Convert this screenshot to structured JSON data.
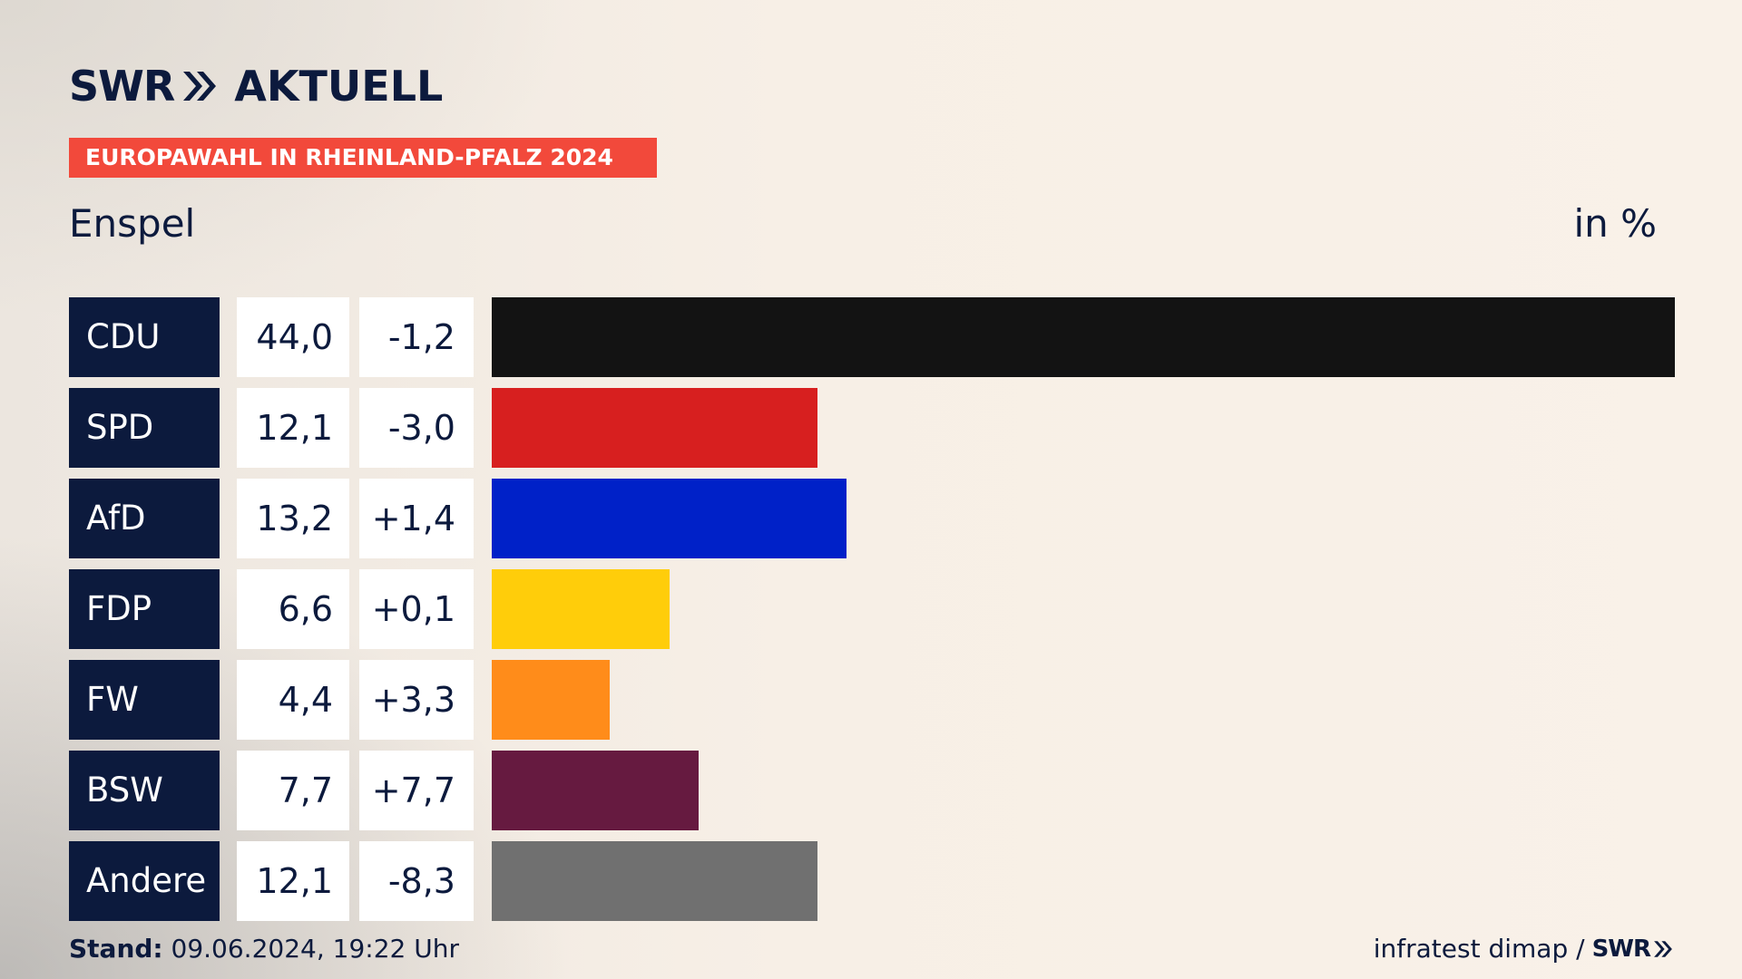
{
  "header": {
    "brand": "SWR",
    "brand_suffix": "AKTUELL",
    "banner": "EUROPAWAHL IN RHEINLAND-PFALZ 2024",
    "place": "Enspel",
    "unit": "in %"
  },
  "footer": {
    "stand_label": "Stand:",
    "stand_value": " 09.06.2024, 19:22 Uhr",
    "source": "infratest dimap /",
    "source_brand": "SWR"
  },
  "colors": {
    "navy": "#0c1a3d",
    "banner": "#f2493b"
  },
  "chart_data": {
    "type": "bar",
    "orientation": "horizontal",
    "categories": [
      "CDU",
      "SPD",
      "AfD",
      "FDP",
      "FW",
      "BSW",
      "Andere"
    ],
    "values": [
      44.0,
      12.1,
      13.2,
      6.6,
      4.4,
      7.7,
      12.1
    ],
    "value_labels": [
      "44,0",
      "12,1",
      "13,2",
      "6,6",
      "4,4",
      "7,7",
      "12,1"
    ],
    "changes": [
      -1.2,
      -3.0,
      1.4,
      0.1,
      3.3,
      7.7,
      -8.3
    ],
    "change_labels": [
      "-1,2",
      "-3,0",
      "+1,4",
      "+0,1",
      "+3,3",
      "+7,7",
      "-8,3"
    ],
    "bar_colors": [
      "#131313",
      "#d71f1f",
      "#0021c8",
      "#ffcd0a",
      "#ff8c1a",
      "#661a40",
      "#707070"
    ],
    "xlim": [
      0,
      44.0
    ],
    "grid": false,
    "legend": "none"
  }
}
